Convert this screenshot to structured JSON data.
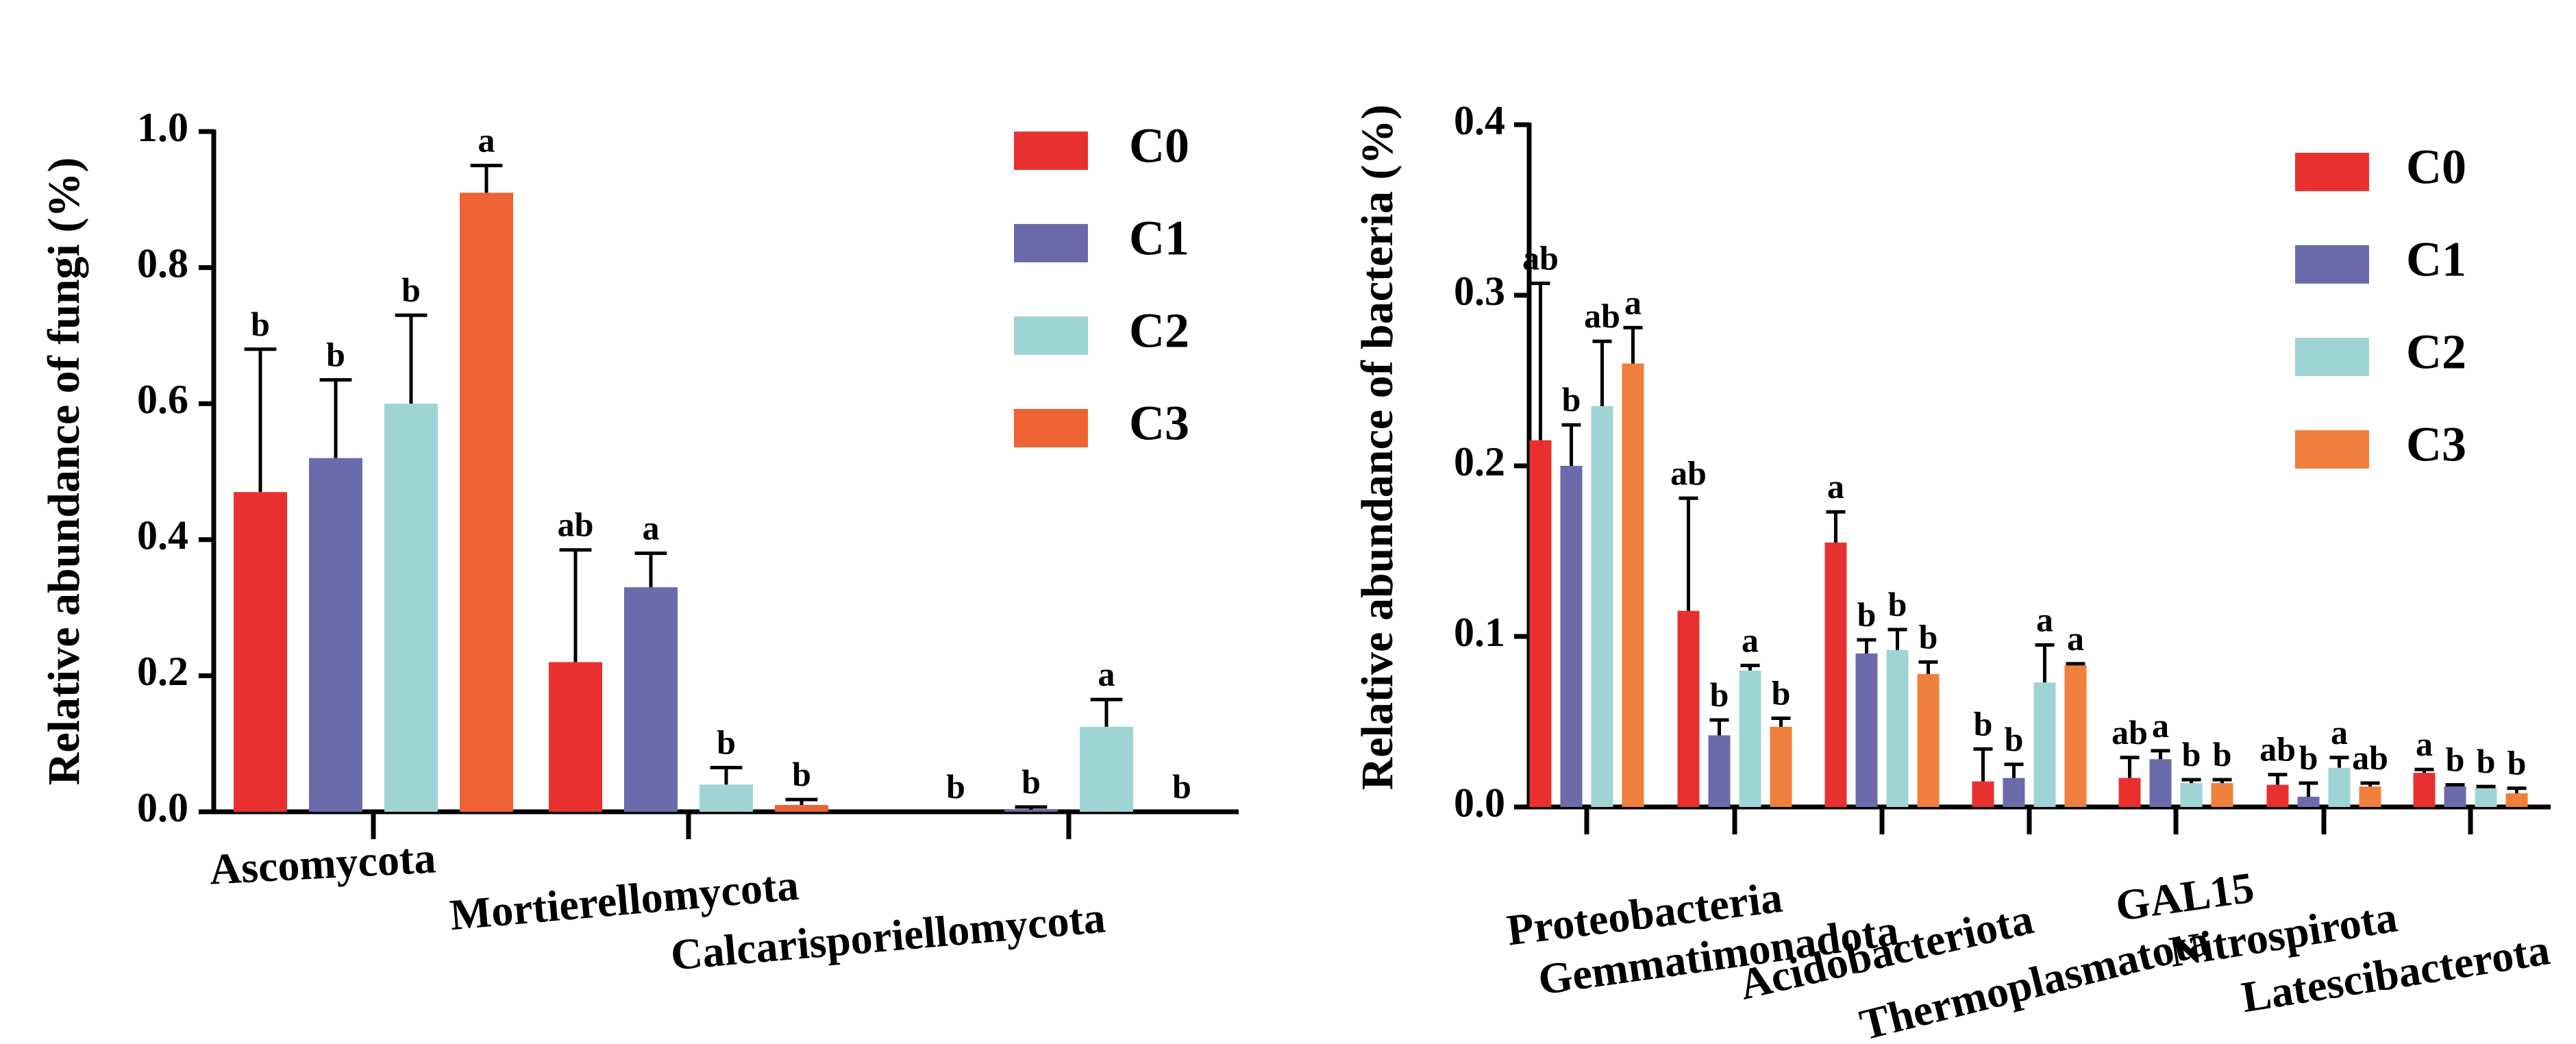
{
  "chart_data": [
    {
      "type": "bar",
      "title": "",
      "xlabel": "",
      "ylabel": "Relative abundance of fungi (%)",
      "ylim": [
        0,
        1.0
      ],
      "yticks": [
        "0.0",
        "0.2",
        "0.4",
        "0.6",
        "0.8",
        "1.0"
      ],
      "legend_position": "top-right",
      "categories": [
        "Ascomycota",
        "Mortierellomycota",
        "Calcarisporiellomycota"
      ],
      "series": [
        {
          "name": "C0",
          "color": "#e8312f",
          "values": [
            0.47,
            0.22,
            0.0
          ],
          "errors": [
            0.21,
            0.165,
            0.0
          ],
          "letters": [
            "b",
            "ab",
            "b"
          ]
        },
        {
          "name": "C1",
          "color": "#6b6aaa",
          "values": [
            0.52,
            0.33,
            0.003
          ],
          "errors": [
            0.115,
            0.05,
            0.004
          ],
          "letters": [
            "b",
            "a",
            "b"
          ]
        },
        {
          "name": "C2",
          "color": "#9fd4d4",
          "values": [
            0.6,
            0.04,
            0.125
          ],
          "errors": [
            0.13,
            0.025,
            0.04
          ],
          "letters": [
            "b",
            "b",
            "a"
          ]
        },
        {
          "name": "C3",
          "color": "#ee6233",
          "values": [
            0.91,
            0.01,
            0.0
          ],
          "errors": [
            0.04,
            0.008,
            0.0
          ],
          "letters": [
            "a",
            "b",
            "b"
          ]
        }
      ]
    },
    {
      "type": "bar",
      "title": "",
      "xlabel": "",
      "ylabel": "Relative abundance of bacteria (%)",
      "ylim": [
        0,
        0.4
      ],
      "yticks": [
        "0.0",
        "0.1",
        "0.2",
        "0.3",
        "0.4"
      ],
      "legend_position": "top-right",
      "categories": [
        "Proteobacteria",
        "Gemmatimonadota",
        "Acidobacteriota",
        "Thermoplasmatota",
        "GAL15",
        "Nitrospirota",
        "Latescibacterota"
      ],
      "series": [
        {
          "name": "C0",
          "color": "#e8312f",
          "values": [
            0.215,
            0.115,
            0.155,
            0.015,
            0.017,
            0.013,
            0.02
          ],
          "errors": [
            0.092,
            0.066,
            0.018,
            0.019,
            0.012,
            0.006,
            0.002
          ],
          "letters": [
            "ab",
            "ab",
            "a",
            "b",
            "ab",
            "ab",
            "a"
          ]
        },
        {
          "name": "C1",
          "color": "#6b6aaa",
          "values": [
            0.2,
            0.042,
            0.09,
            0.017,
            0.028,
            0.006,
            0.012
          ],
          "errors": [
            0.024,
            0.009,
            0.008,
            0.008,
            0.005,
            0.008,
            0.001
          ],
          "letters": [
            "b",
            "b",
            "b",
            "b",
            "a",
            "b",
            "b"
          ]
        },
        {
          "name": "C2",
          "color": "#9fd4d4",
          "values": [
            0.235,
            0.08,
            0.092,
            0.073,
            0.014,
            0.023,
            0.011
          ],
          "errors": [
            0.038,
            0.003,
            0.012,
            0.022,
            0.002,
            0.006,
            0.001
          ],
          "letters": [
            "ab",
            "a",
            "b",
            "a",
            "b",
            "a",
            "b"
          ]
        },
        {
          "name": "C3",
          "color": "#ef7f3c",
          "values": [
            0.26,
            0.047,
            0.078,
            0.083,
            0.014,
            0.012,
            0.008
          ],
          "errors": [
            0.021,
            0.005,
            0.007,
            0.001,
            0.002,
            0.002,
            0.003
          ],
          "letters": [
            "a",
            "b",
            "b",
            "a",
            "b",
            "ab",
            "b"
          ]
        }
      ]
    }
  ]
}
